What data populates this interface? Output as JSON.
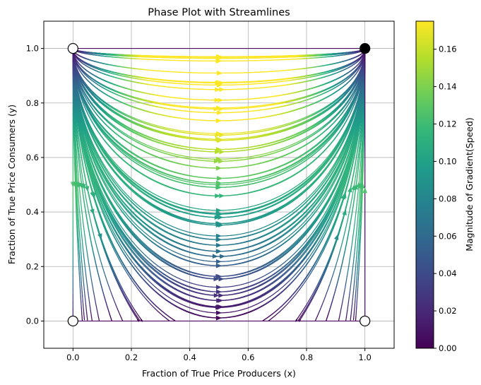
{
  "chart_data": {
    "type": "streamplot",
    "title": "Phase Plot with Streamlines",
    "xlabel": "Fraction of True Price Producers (x)",
    "ylabel": "Fraction of True Price Consumers (y)",
    "xlim": [
      -0.1,
      1.1
    ],
    "ylim": [
      -0.1,
      1.1
    ],
    "xticks": [
      0.0,
      0.2,
      0.4,
      0.6,
      0.8,
      1.0
    ],
    "yticks": [
      0.0,
      0.2,
      0.4,
      0.6,
      0.8,
      1.0
    ],
    "xtick_labels": [
      "0.0",
      "0.2",
      "0.4",
      "0.6",
      "0.8",
      "1.0"
    ],
    "ytick_labels": [
      "0.0",
      "0.2",
      "0.4",
      "0.6",
      "0.8",
      "1.0"
    ],
    "grid": true,
    "vector_field": {
      "dx": "x*(1-x)*y",
      "dy": "y*(1-y)*(x-0.5)"
    },
    "fixed_points": [
      {
        "x": 0,
        "y": 1,
        "style": "open"
      },
      {
        "x": 1,
        "y": 1,
        "style": "filled"
      },
      {
        "x": 0,
        "y": 0,
        "style": "open"
      },
      {
        "x": 1,
        "y": 0,
        "style": "open"
      }
    ],
    "colorbar": {
      "label": "Magnitude of Gradient(Speed)",
      "colormap": "viridis",
      "range": [
        0.0,
        0.175
      ],
      "ticks": [
        0.0,
        0.02,
        0.04,
        0.06,
        0.08,
        0.1,
        0.12,
        0.14,
        0.16
      ],
      "tick_labels": [
        "0.00",
        "0.02",
        "0.04",
        "0.06",
        "0.08",
        "0.10",
        "0.12",
        "0.14",
        "0.16"
      ]
    }
  },
  "colors": {
    "viridis": [
      "#440154",
      "#482878",
      "#3e4989",
      "#31688e",
      "#26828e",
      "#1f9e89",
      "#35b779",
      "#6ece58",
      "#b5de2b",
      "#fde725"
    ],
    "grid": "#b0b0b0"
  }
}
